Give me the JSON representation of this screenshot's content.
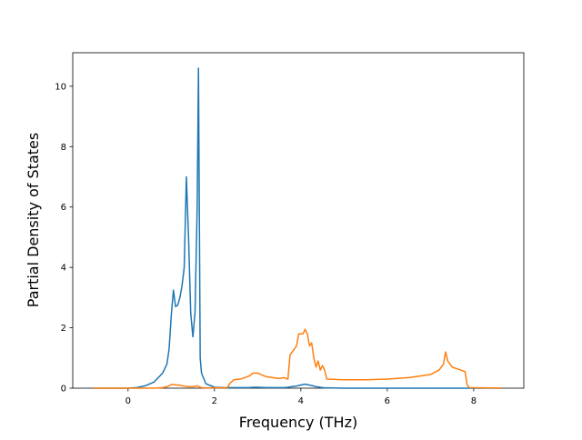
{
  "chart_data": {
    "type": "line",
    "xlabel": "Frequency (THz)",
    "ylabel": "Partial Density of States",
    "x": [
      -0.8,
      0,
      0.2,
      0.4,
      0.6,
      0.8,
      0.9,
      0.95,
      1.0,
      1.05,
      1.1,
      1.15,
      1.2,
      1.25,
      1.3,
      1.35,
      1.4,
      1.45,
      1.5,
      1.55,
      1.6,
      1.63,
      1.67,
      1.7,
      1.8,
      2.0,
      2.3,
      2.35,
      2.45,
      2.6,
      2.8,
      2.9,
      3.0,
      3.2,
      3.5,
      3.6,
      3.7,
      3.75,
      3.9,
      3.95,
      4.05,
      4.1,
      4.15,
      4.2,
      4.25,
      4.3,
      4.35,
      4.4,
      4.45,
      4.5,
      4.55,
      4.6,
      5.0,
      5.5,
      6.0,
      6.5,
      7.0,
      7.2,
      7.3,
      7.35,
      7.4,
      7.5,
      7.7,
      7.8,
      7.85,
      7.9,
      8.65
    ],
    "series": [
      {
        "color": "#1f77b4",
        "values": [
          0,
          0,
          0.02,
          0.08,
          0.2,
          0.5,
          0.8,
          1.3,
          2.4,
          3.25,
          2.7,
          2.75,
          3.0,
          3.4,
          4.0,
          7.0,
          5.0,
          2.5,
          1.7,
          2.5,
          6.0,
          10.6,
          1.0,
          0.5,
          0.15,
          0.03,
          0.02,
          0.02,
          0.02,
          0.02,
          0.02,
          0.03,
          0.03,
          0.02,
          0.02,
          0.02,
          0.03,
          0.04,
          0.07,
          0.09,
          0.12,
          0.13,
          0.12,
          0.1,
          0.09,
          0.07,
          0.05,
          0.04,
          0.03,
          0.02,
          0.01,
          0.01,
          0,
          0,
          0,
          0,
          0,
          0,
          0,
          0,
          0,
          0,
          0,
          0,
          0,
          0,
          0
        ]
      },
      {
        "color": "#ff7f0e",
        "values": [
          0,
          0,
          0,
          0,
          0,
          0.02,
          0.05,
          0.08,
          0.12,
          0.12,
          0.11,
          0.1,
          0.1,
          0.08,
          0.07,
          0.06,
          0.05,
          0.05,
          0.05,
          0.06,
          0.08,
          0.06,
          0.03,
          0.02,
          0.01,
          0.01,
          0.02,
          0.15,
          0.28,
          0.3,
          0.4,
          0.5,
          0.5,
          0.38,
          0.32,
          0.35,
          0.3,
          1.1,
          1.4,
          1.8,
          1.8,
          1.95,
          1.8,
          1.4,
          1.5,
          1.0,
          0.7,
          0.9,
          0.6,
          0.75,
          0.6,
          0.3,
          0.28,
          0.28,
          0.3,
          0.35,
          0.45,
          0.6,
          0.8,
          1.2,
          0.9,
          0.7,
          0.6,
          0.55,
          0.1,
          0.02,
          0
        ]
      }
    ],
    "xlim": [
      -1.28,
      9.16
    ],
    "ylim": [
      0,
      11.11
    ],
    "xticks": [
      0,
      2,
      4,
      6,
      8
    ],
    "yticks": [
      0,
      2,
      4,
      6,
      8,
      10
    ]
  }
}
